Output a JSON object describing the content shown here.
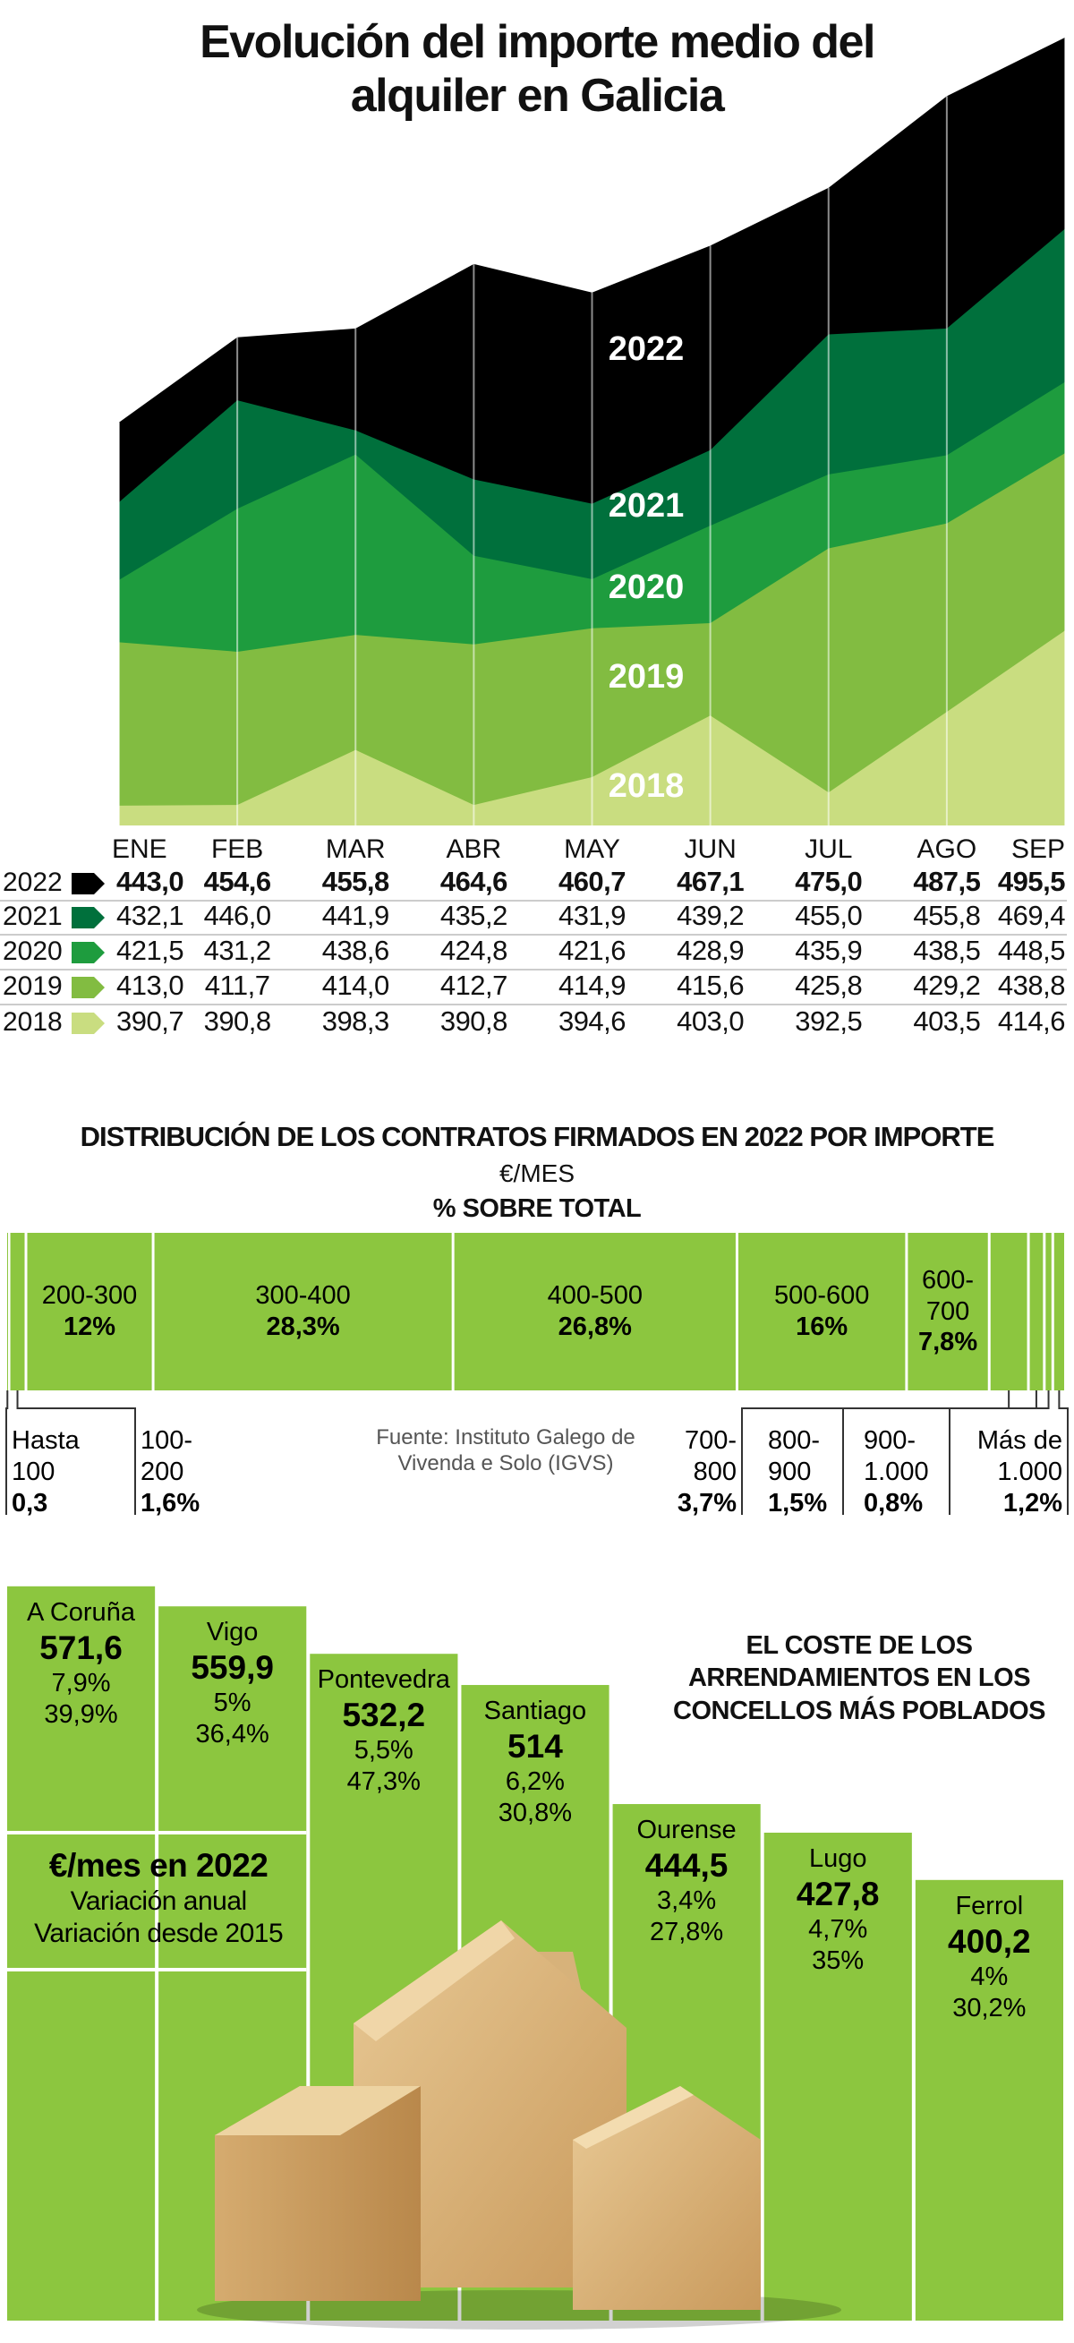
{
  "chart_data": [
    {
      "type": "area",
      "title": "Evolución del importe medio del alquiler en Galicia",
      "categories": [
        "ENE",
        "FEB",
        "MAR",
        "ABR",
        "MAY",
        "JUN",
        "JUL",
        "AGO",
        "SEP"
      ],
      "ylim": [
        388,
        500
      ],
      "series": [
        {
          "name": "2022",
          "color": "#000000",
          "values": [
            443.0,
            454.6,
            455.8,
            464.6,
            460.7,
            467.1,
            475.0,
            487.5,
            495.5
          ],
          "value_labels": [
            "443,0",
            "454,6",
            "455,8",
            "464,6",
            "460,7",
            "467,1",
            "475,0",
            "487,5",
            "495,5"
          ]
        },
        {
          "name": "2021",
          "color": "#00703c",
          "values": [
            432.1,
            446.0,
            441.9,
            435.2,
            431.9,
            439.2,
            455.0,
            455.8,
            469.4
          ],
          "value_labels": [
            "432,1",
            "446,0",
            "441,9",
            "435,2",
            "431,9",
            "439,2",
            "455,0",
            "455,8",
            "469,4"
          ]
        },
        {
          "name": "2020",
          "color": "#1e9c3e",
          "values": [
            421.5,
            431.2,
            438.6,
            424.8,
            421.6,
            428.9,
            435.9,
            438.5,
            448.5
          ],
          "value_labels": [
            "421,5",
            "431,2",
            "438,6",
            "424,8",
            "421,6",
            "428,9",
            "435,9",
            "438,5",
            "448,5"
          ]
        },
        {
          "name": "2019",
          "color": "#82bc41",
          "values": [
            413.0,
            411.7,
            414.0,
            412.7,
            414.9,
            415.6,
            425.8,
            429.2,
            438.8
          ],
          "value_labels": [
            "413,0",
            "411,7",
            "414,0",
            "412,7",
            "414,9",
            "415,6",
            "425,8",
            "429,2",
            "438,8"
          ]
        },
        {
          "name": "2018",
          "color": "#c9dd80",
          "values": [
            390.7,
            390.8,
            398.3,
            390.8,
            394.6,
            403.0,
            392.5,
            403.5,
            414.6
          ],
          "value_labels": [
            "390,7",
            "390,8",
            "398,3",
            "390,8",
            "394,6",
            "403,0",
            "392,5",
            "403,5",
            "414,6"
          ]
        }
      ]
    },
    {
      "type": "mosaic",
      "title": "DISTRIBUCIÓN DE LOS CONTRATOS FIRMADOS EN 2022 POR IMPORTE",
      "subtitle": "€/MES",
      "note": "% SOBRE TOTAL",
      "source": "Fuente: Instituto Galego de Vivenda e Solo (IGVS)",
      "color": "#8cc63f",
      "categories": [
        "Hasta 100",
        "100-200",
        "200-300",
        "300-400",
        "400-500",
        "500-600",
        "600-700",
        "700-800",
        "800-900",
        "900-1.000",
        "Más de 1.000"
      ],
      "values": [
        0.3,
        1.6,
        12,
        28.3,
        26.8,
        16,
        7.8,
        3.7,
        1.5,
        0.8,
        1.2
      ],
      "value_labels": [
        "0,3",
        "1,6%",
        "12%",
        "28,3%",
        "26,8%",
        "16%",
        "7,8%",
        "3,7%",
        "1,5%",
        "0,8%",
        "1,2%"
      ]
    },
    {
      "type": "bar",
      "title": "EL COSTE DE LOS ARRENDAMIENTOS EN LOS CONCELLOS MÁS POBLADOS",
      "color": "#8cc63f",
      "ylim": [
        143,
        583
      ],
      "categories": [
        "A Coruña",
        "Vigo",
        "Pontevedra",
        "Santiago",
        "Ourense",
        "Lugo",
        "Ferrol"
      ],
      "series": [
        {
          "name": "€/mes en 2022",
          "values": [
            571.6,
            559.9,
            532.2,
            514,
            444.5,
            427.8,
            400.2
          ],
          "value_labels": [
            "571,6",
            "559,9",
            "532,2",
            "514",
            "444,5",
            "427,8",
            "400,2"
          ]
        },
        {
          "name": "Variación anual",
          "values": [
            7.9,
            5,
            5.5,
            6.2,
            3.4,
            4.7,
            4
          ],
          "value_labels": [
            "7,9%",
            "5%",
            "5,5%",
            "6,2%",
            "3,4%",
            "4,7%",
            "4%"
          ]
        },
        {
          "name": "Variación desde 2015",
          "values": [
            39.9,
            36.4,
            47.3,
            30.8,
            27.8,
            35,
            30.2
          ],
          "value_labels": [
            "39,9%",
            "36,4%",
            "47,3%",
            "30,8%",
            "27,8%",
            "35%",
            "30,2%"
          ]
        }
      ]
    }
  ]
}
